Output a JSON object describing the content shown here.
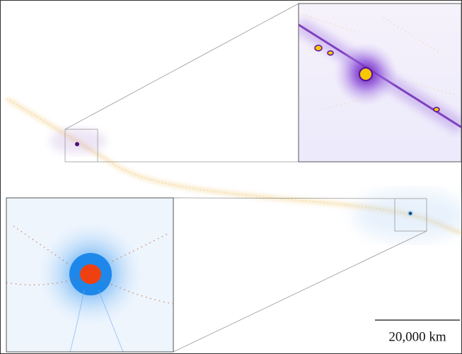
{
  "scale_bar": {
    "label": "20,000 km"
  }
}
